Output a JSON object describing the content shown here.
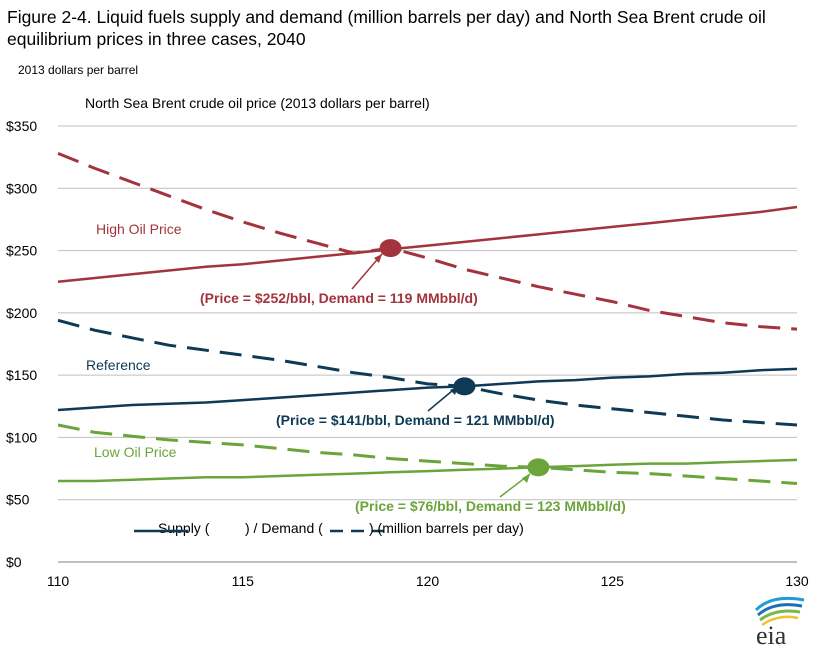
{
  "figure": {
    "title": "Figure 2-4. Liquid fuels supply and demand (million barrels per day) and North Sea Brent crude oil equilibrium prices in three cases, 2040",
    "units_label": "2013 dollars per barrel",
    "logo_text": "eia",
    "logo_colors": [
      "#1f9bd7",
      "#1a6fb5",
      "#7ab648",
      "#f2c12e"
    ]
  },
  "chart_data": {
    "type": "line",
    "title": "North Sea Brent crude oil price (2013 dollars per barrel)",
    "xlim": [
      110,
      130
    ],
    "ylim": [
      0,
      350
    ],
    "x_ticks": [
      110,
      115,
      120,
      125,
      130
    ],
    "y_ticks": [
      0,
      50,
      100,
      150,
      200,
      250,
      300,
      350
    ],
    "y_tick_labels": [
      "$0",
      "$50",
      "$100",
      "$150",
      "$200",
      "$250",
      "$300",
      "$350"
    ],
    "grid": "horizontal",
    "x": [
      110,
      111,
      112,
      113,
      114,
      115,
      116,
      117,
      118,
      119,
      120,
      121,
      122,
      123,
      124,
      125,
      126,
      127,
      128,
      129,
      130
    ],
    "cases": [
      {
        "label": "High Oil Price",
        "color": "#a3333d",
        "supply": [
          225,
          228,
          231,
          234,
          237,
          239,
          242,
          245,
          248,
          251,
          254,
          257,
          260,
          263,
          266,
          269,
          272,
          275,
          278,
          281,
          285
        ],
        "demand": [
          328,
          316,
          305,
          294,
          283,
          273,
          264,
          256,
          248,
          252,
          244,
          235,
          228,
          221,
          215,
          209,
          202,
          197,
          192,
          189,
          187
        ],
        "equilibrium": {
          "x": 119,
          "y": 252
        },
        "annotation": "(Price = $252/bbl, Demand = 119 MMbbl/d)"
      },
      {
        "label": "Reference",
        "color": "#0e3a55",
        "supply": [
          122,
          124,
          126,
          127,
          128,
          130,
          132,
          134,
          136,
          138,
          140,
          141,
          143,
          145,
          146,
          148,
          149,
          151,
          152,
          154,
          155
        ],
        "demand": [
          194,
          186,
          180,
          174,
          170,
          166,
          162,
          157,
          152,
          148,
          143,
          141,
          135,
          130,
          126,
          123,
          120,
          117,
          114,
          112,
          110
        ],
        "equilibrium": {
          "x": 121,
          "y": 141
        },
        "annotation": "(Price = $141/bbl, Demand = 121 MMbbl/d)"
      },
      {
        "label": "Low Oil Price",
        "color": "#6aa43a",
        "supply": [
          65,
          65,
          66,
          67,
          68,
          68,
          69,
          70,
          71,
          72,
          73,
          74,
          75,
          76,
          77,
          78,
          79,
          79,
          80,
          81,
          82
        ],
        "demand": [
          110,
          104,
          101,
          98,
          96,
          94,
          91,
          88,
          86,
          83,
          81,
          79,
          77,
          76,
          74,
          72,
          71,
          69,
          67,
          65,
          63
        ],
        "equilibrium": {
          "x": 123,
          "y": 76
        },
        "annotation": "(Price = $76/bbl, Demand = 123 MMbbl/d)"
      }
    ],
    "legend": {
      "position": "bottom-left",
      "text_supply": "Supply (",
      "text_mid": ") / Demand (",
      "text_end": ") (million barrels per day)",
      "color": "#0e3a55"
    }
  }
}
